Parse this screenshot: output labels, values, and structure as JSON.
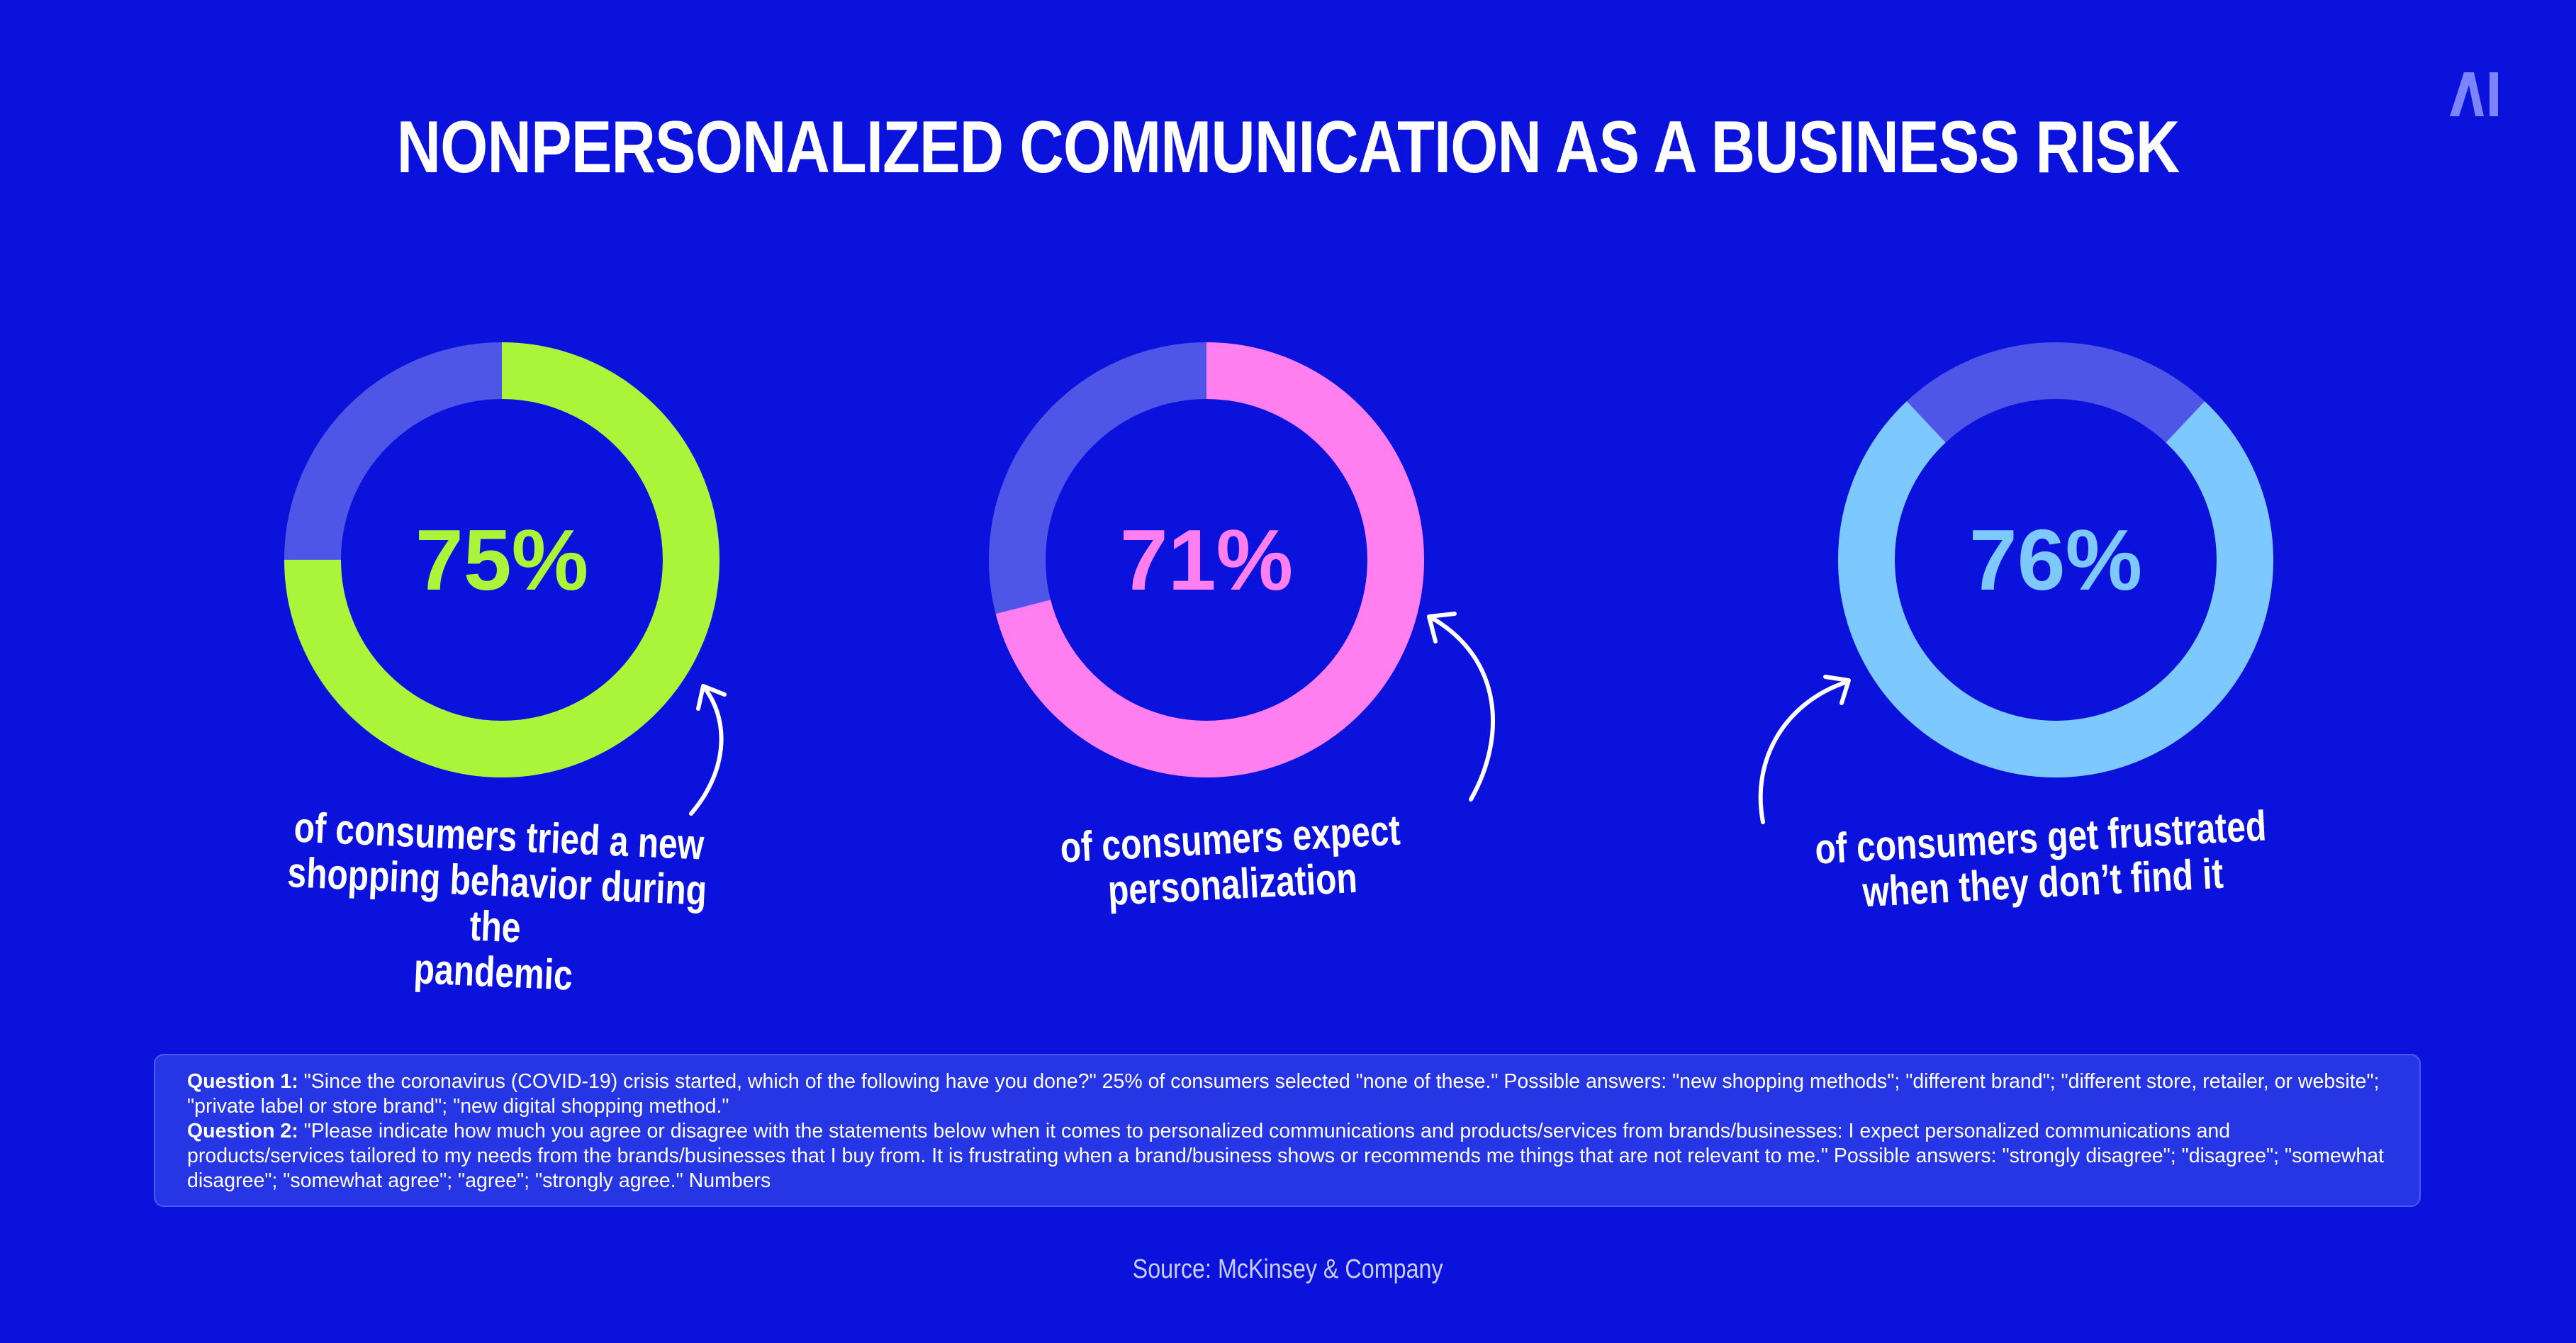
{
  "title": "NONPERSONALIZED COMMUNICATION AS A BUSINESS RISK",
  "logo_text": "AI",
  "colors": {
    "background": "#0a12dc",
    "track": "#4f55e6",
    "green": "#aaf43a",
    "pink": "#ff7ff0",
    "blue": "#7cc8ff"
  },
  "chart_data": [
    {
      "type": "pie",
      "variant": "donut",
      "value_label": "75%",
      "values": [
        75,
        25
      ],
      "caption": [
        "of consumers tried a new",
        "shopping behavior during the",
        "pandemic"
      ],
      "color": "#aaf43a"
    },
    {
      "type": "pie",
      "variant": "donut",
      "value_label": "71%",
      "values": [
        71,
        29
      ],
      "caption": [
        "of consumers expect",
        "personalization"
      ],
      "color": "#ff7ff0"
    },
    {
      "type": "pie",
      "variant": "donut",
      "value_label": "76%",
      "values": [
        76,
        24
      ],
      "caption": [
        "of consumers get frustrated",
        "when they don’t find it"
      ],
      "color": "#7cc8ff"
    }
  ],
  "notes": {
    "q1_label": "Question 1:",
    "q1_text": " \"Since the coronavirus (COVID-19) crisis started, which of the following have you done?\" 25% of consumers selected \"none of these.\" Possible answers: \"new shopping methods\"; \"different brand\"; \"different store, retailer, or website\"; \"private label or store brand\"; \"new digital shopping method.\"",
    "q2_label": "Question 2:",
    "q2_text": " \"Please indicate how much you agree or disagree with the statements below when it comes to personalized communications and products/services from brands/businesses: I expect personalized communications and products/services tailored to my needs from the brands/businesses that I buy from. It is frustrating when a brand/business shows or recommends me things that are not relevant to me.\" Possible answers: \"strongly disagree\"; \"disagree\"; \"somewhat disagree\"; \"somewhat agree\"; \"agree\"; \"strongly agree.\" Numbers"
  },
  "source": "Source: McKinsey & Company"
}
